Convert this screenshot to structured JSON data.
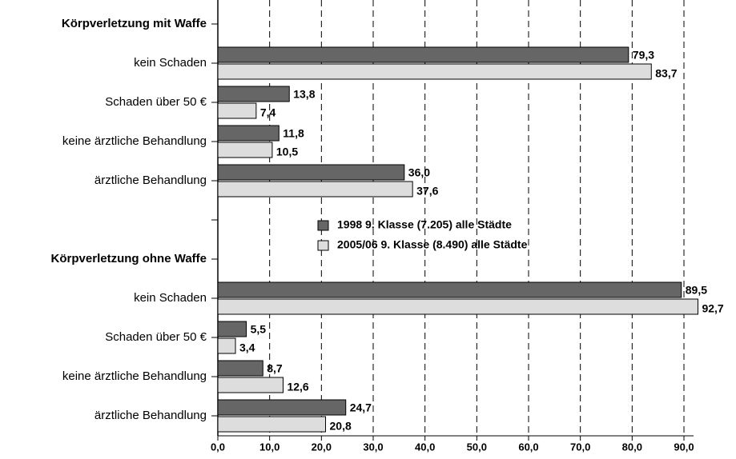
{
  "chart_data": {
    "type": "hbar",
    "categories": [
      "Körpverletzung mit Waffe",
      "kein Schaden",
      "Schaden über 50 €",
      "keine  ärztliche Behandlung",
      "ärztliche Behandlung",
      null,
      "Körpverletzung ohne Waffe",
      "kein Schaden",
      "Schaden über 50 €",
      "keine  ärztliche Behandlung",
      "ärztliche Behandlung"
    ],
    "series": [
      {
        "name": "1998 9. Klasse (7.205) alle Städte",
        "color": "#666666",
        "values": [
          null,
          79.3,
          13.8,
          11.8,
          36.0,
          null,
          null,
          89.5,
          5.5,
          8.7,
          24.7
        ],
        "value_labels": [
          null,
          "79,3",
          "13,8",
          "11,8",
          "36,0",
          null,
          null,
          "89,5",
          "5,5",
          "8,7",
          "24,7"
        ]
      },
      {
        "name": "2005/06 9. Klasse (8.490) alle Städte",
        "color": "#dddddd",
        "values": [
          null,
          83.7,
          7.4,
          10.5,
          37.6,
          null,
          null,
          92.7,
          3.4,
          12.6,
          20.8
        ],
        "value_labels": [
          null,
          "83,7",
          "7,4",
          "10,5",
          "37,6",
          null,
          null,
          "92,7",
          "3,4",
          "12,6",
          "20,8"
        ]
      }
    ],
    "xlim": [
      0,
      90
    ],
    "xticks": [
      {
        "value": 0,
        "label": "0,0"
      },
      {
        "value": 10,
        "label": "10,0"
      },
      {
        "value": 20,
        "label": "20,0"
      },
      {
        "value": 30,
        "label": "30,0"
      },
      {
        "value": 40,
        "label": "40,0"
      },
      {
        "value": 50,
        "label": "50,0"
      },
      {
        "value": 60,
        "label": "60,0"
      },
      {
        "value": 70,
        "label": "70,0"
      },
      {
        "value": 80,
        "label": "80,0"
      },
      {
        "value": 90,
        "label": "90,0"
      }
    ],
    "grid": true,
    "legend": "center"
  }
}
